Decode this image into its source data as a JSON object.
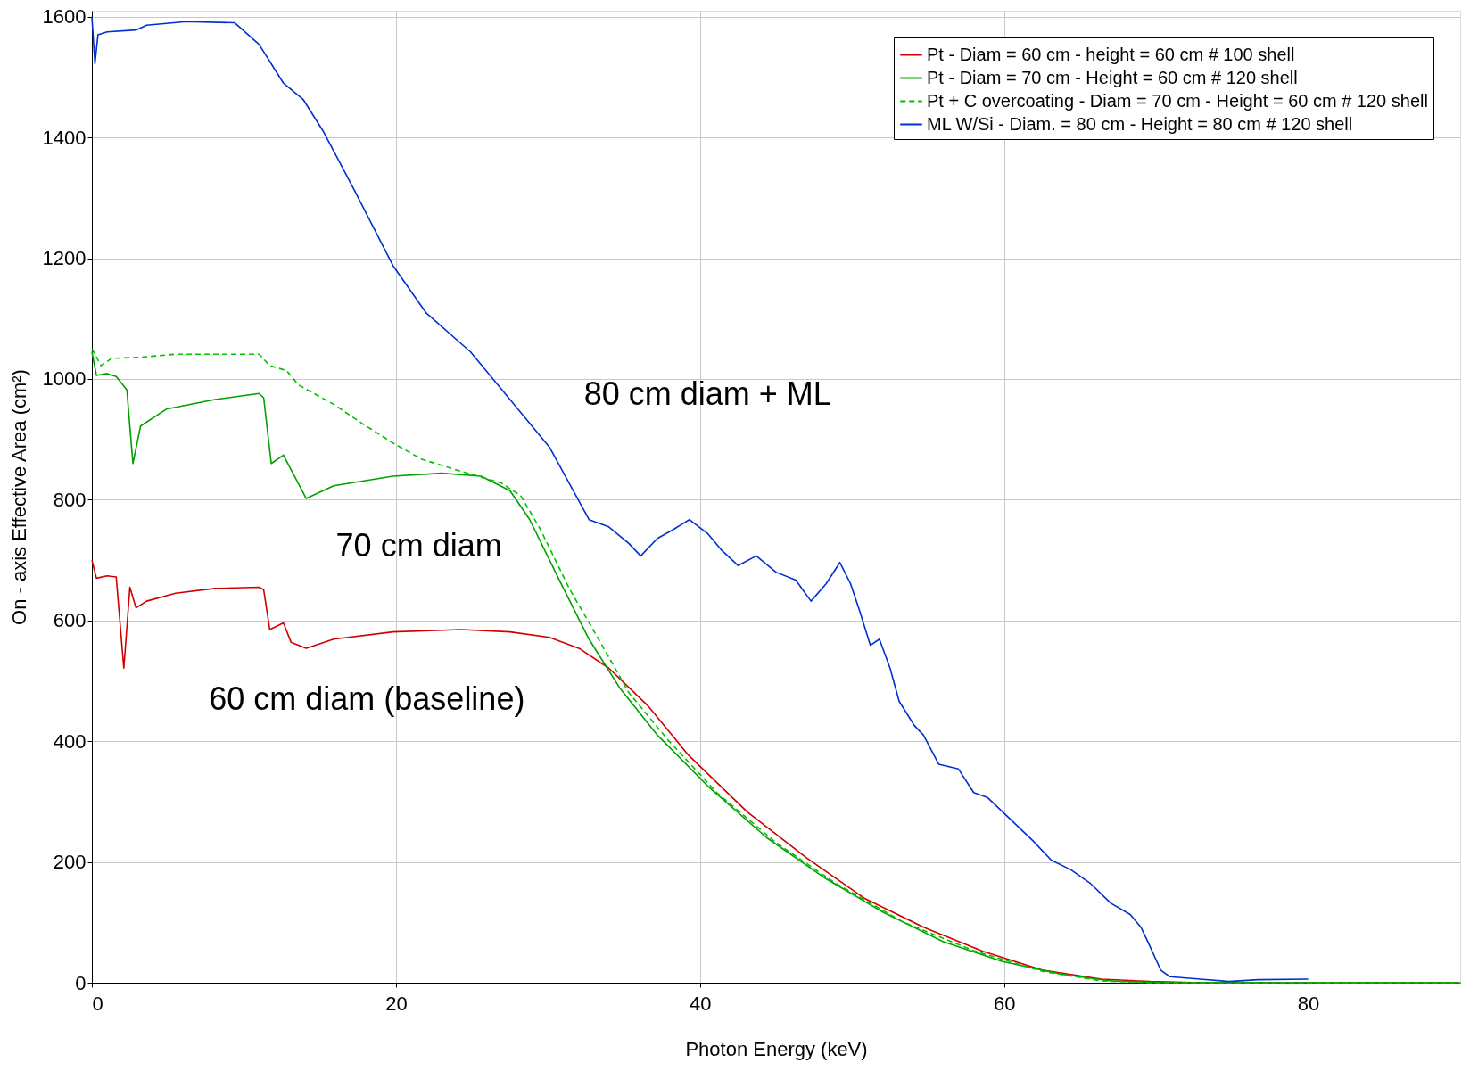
{
  "chart_data": {
    "type": "line",
    "xlabel": "Photon Energy (keV)",
    "ylabel": "On - axis Effective Area (cm²)",
    "xlim": [
      0,
      90
    ],
    "ylim": [
      0,
      1610
    ],
    "xticks": [
      0,
      20,
      40,
      60,
      80
    ],
    "yticks": [
      0,
      200,
      400,
      600,
      800,
      1000,
      1200,
      1400,
      1600
    ],
    "grid": true,
    "legend": "top right",
    "annotations": [
      "80 cm diam + ML",
      "70 cm diam",
      "60 cm diam (baseline)"
    ],
    "series": [
      {
        "name": "Pt - Diam = 60 cm - height = 60 cm # 100 shell",
        "color": "#d00000",
        "line_style": "solid",
        "x": [
          0,
          0.3,
          1,
          1.6,
          2.1,
          2.5,
          2.9,
          3.6,
          5.5,
          8.1,
          11,
          11.3,
          11.7,
          12.6,
          13.1,
          14.1,
          15.9,
          19.8,
          24.3,
          27.5,
          30.1,
          32.1,
          34,
          36.6,
          39.2,
          43.1,
          47,
          50.8,
          54.7,
          58.6,
          62.5,
          66.4,
          69.6,
          72.9,
          90
        ],
        "values": [
          700,
          670,
          674,
          672,
          521,
          655,
          621,
          632,
          645,
          653,
          655,
          651,
          585,
          596,
          564,
          554,
          569,
          581,
          585,
          581,
          572,
          553,
          521,
          458,
          378,
          283,
          207,
          140,
          92,
          52,
          21,
          6,
          2,
          0,
          0
        ]
      },
      {
        "name": "Pt - Diam = 70 cm  - Height = 60 cm # 120 shell",
        "color": "#00a000",
        "line_style": "solid",
        "x": [
          0,
          0.3,
          1,
          1.6,
          2.3,
          2.7,
          3.2,
          4.9,
          8.1,
          11,
          11.3,
          11.8,
          12.6,
          13.6,
          14.1,
          15.9,
          19.8,
          23,
          25.6,
          27.5,
          28.8,
          30.8,
          32.7,
          34.7,
          37.2,
          40.5,
          44.4,
          48.3,
          52.1,
          56,
          59.9,
          63.8,
          67,
          70.3,
          90
        ],
        "values": [
          1045,
          1006,
          1009,
          1004,
          982,
          860,
          922,
          950,
          966,
          976,
          969,
          860,
          874,
          826,
          802,
          823,
          839,
          844,
          839,
          815,
          767,
          664,
          569,
          489,
          410,
          326,
          240,
          172,
          116,
          68,
          35,
          14,
          3,
          0,
          0
        ]
      },
      {
        "name": "Pt + C overcoating - Diam = 70 cm - Height = 60 cm # 120 shell",
        "color": "#00c000",
        "line_style": "dashed",
        "x": [
          0,
          0.6,
          1.3,
          3.2,
          5.5,
          11,
          11.7,
          12.8,
          13.6,
          15.9,
          17.8,
          19.8,
          21.7,
          24.3,
          26.9,
          28.2,
          29.5,
          31.4,
          33.4,
          35.3,
          37.9,
          41.1,
          45,
          48.9,
          53.4,
          58,
          62.5,
          66.4,
          69.6,
          90
        ],
        "values": [
          1050,
          1022,
          1034,
          1036,
          1041,
          1041,
          1022,
          1014,
          990,
          958,
          926,
          894,
          867,
          847,
          828,
          807,
          751,
          653,
          566,
          481,
          402,
          315,
          232,
          165,
          100,
          53,
          19,
          3,
          0,
          0
        ]
      },
      {
        "name": "ML W/Si - Diam. = 80 cm -  Height = 80 cm # 120 shell",
        "color": "#0030d0",
        "line_style": "solid",
        "x": [
          0,
          0.2,
          0.4,
          1,
          2.9,
          3.6,
          6.2,
          9.4,
          11,
          12.6,
          13.9,
          15.2,
          17.2,
          19.8,
          22,
          24.9,
          27.5,
          30.1,
          32.7,
          34,
          35.3,
          36.1,
          37.2,
          38.2,
          39.3,
          40.5,
          41.4,
          42.5,
          43.7,
          45,
          46.3,
          47.3,
          48.3,
          49.2,
          49.9,
          50.5,
          51.2,
          51.8,
          52.5,
          53.1,
          54.1,
          54.7,
          55.7,
          57,
          58,
          58.9,
          59.9,
          60.9,
          61.9,
          63.1,
          64.4,
          65.7,
          67,
          68.3,
          69,
          69.6,
          70.3,
          70.9,
          72.9,
          74.8,
          76.7,
          80
        ],
        "values": [
          1600,
          1522,
          1570,
          1575,
          1578,
          1586,
          1592,
          1590,
          1554,
          1490,
          1463,
          1411,
          1316,
          1188,
          1109,
          1045,
          966,
          887,
          767,
          755,
          728,
          707,
          736,
          750,
          767,
          744,
          717,
          691,
          707,
          680,
          667,
          632,
          661,
          696,
          661,
          616,
          559,
          569,
          521,
          466,
          426,
          410,
          362,
          354,
          315,
          307,
          283,
          259,
          235,
          203,
          187,
          164,
          132,
          113,
          92,
          60,
          21,
          10,
          6,
          2,
          5,
          6
        ]
      }
    ]
  }
}
